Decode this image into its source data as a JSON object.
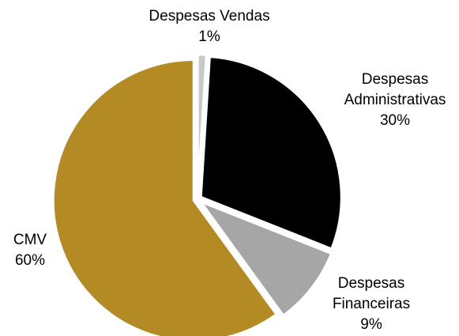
{
  "chart_data": {
    "type": "pie",
    "categories": [
      "Despesas Vendas",
      "Despesas Administrativas",
      "Despesas Financeiras",
      "CMV"
    ],
    "values": [
      1,
      30,
      9,
      60
    ],
    "value_labels": [
      "1%",
      "30%",
      "9%",
      "60%"
    ],
    "colors": [
      "#c8c8c8",
      "#000000",
      "#a6a6a6",
      "#b38a24"
    ]
  }
}
